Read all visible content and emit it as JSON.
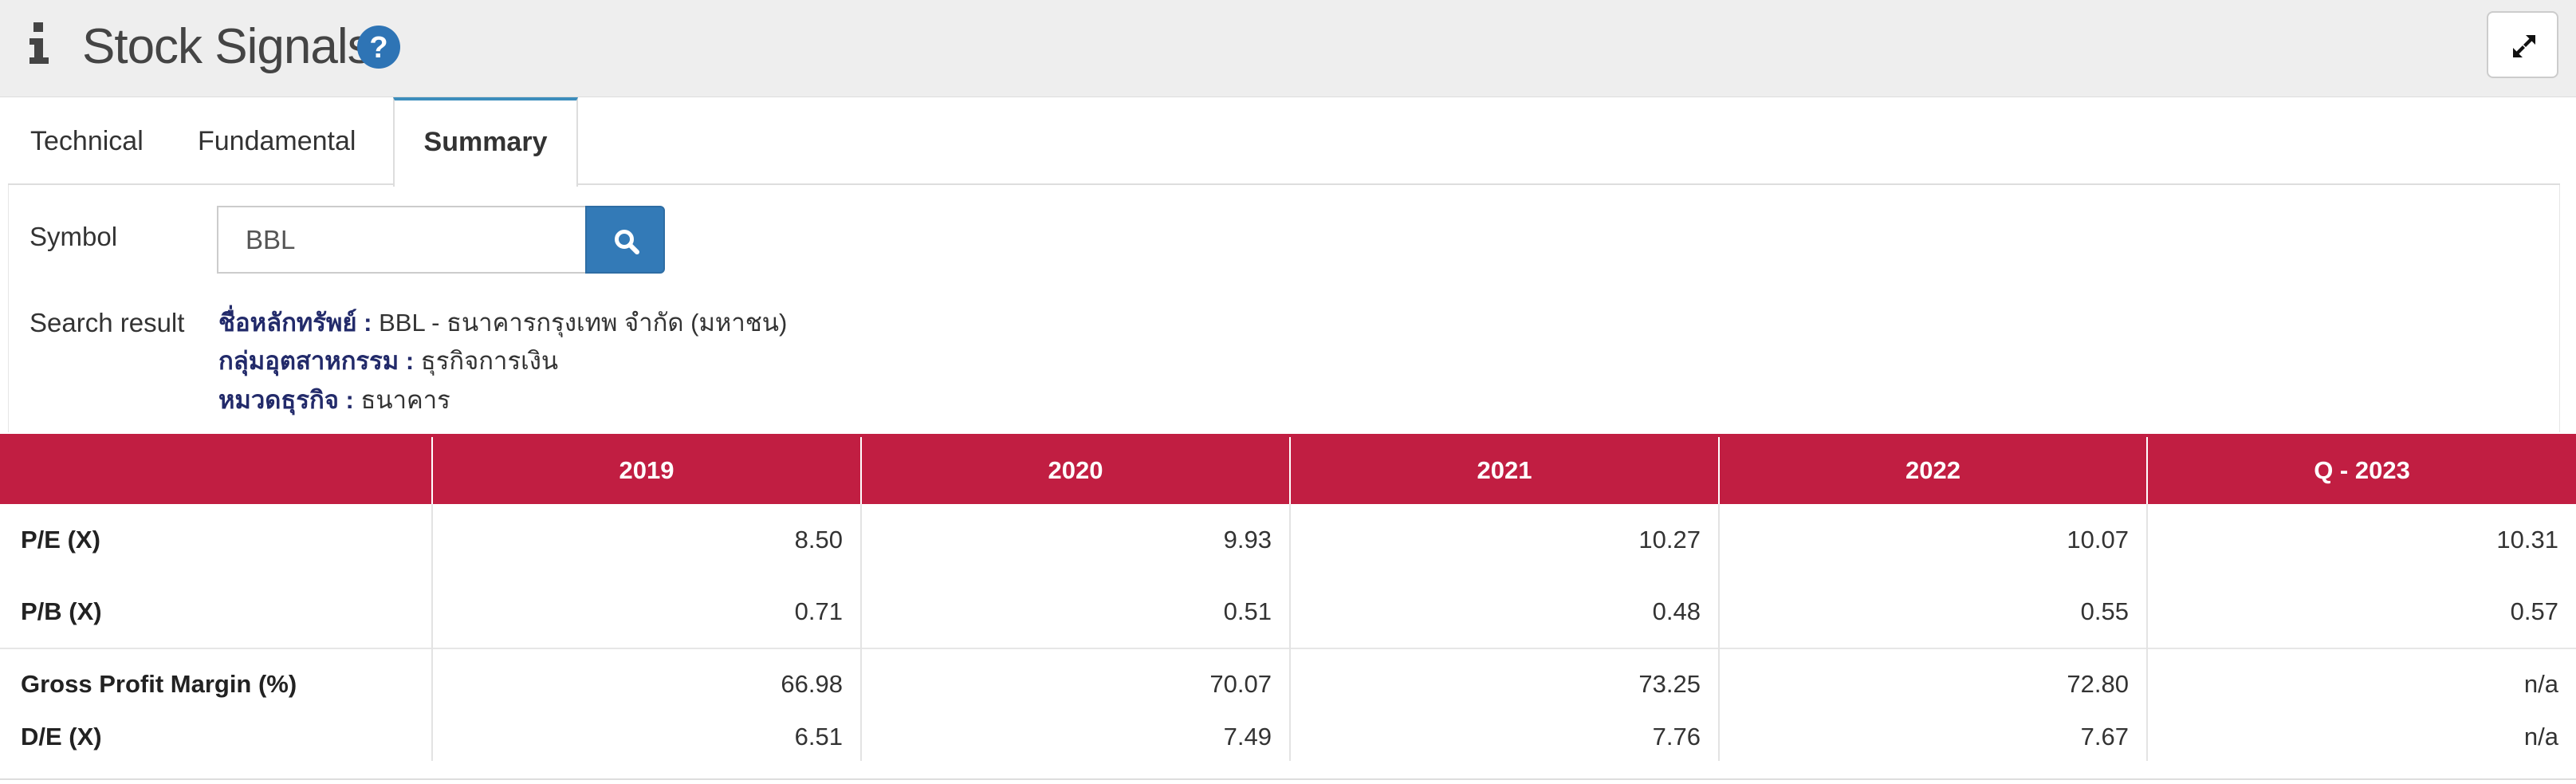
{
  "header": {
    "title": "Stock Signals"
  },
  "tabs": [
    {
      "label": "Technical"
    },
    {
      "label": "Fundamental"
    },
    {
      "label": "Summary"
    }
  ],
  "form": {
    "symbol_label": "Symbol",
    "symbol_value": "BBL",
    "result_label": "Search result",
    "results": [
      {
        "key": "ชื่อหลักทรัพย์ :",
        "value": "BBL - ธนาคารกรุงเทพ จำกัด (มหาชน)"
      },
      {
        "key": "กลุ่มอุตสาหกรรม :",
        "value": "ธุรกิจการเงิน"
      },
      {
        "key": "หมวดธุรกิจ :",
        "value": "ธนาคาร"
      }
    ]
  },
  "table": {
    "columns": [
      "",
      "2019",
      "2020",
      "2021",
      "2022",
      "Q - 2023"
    ],
    "rows": [
      {
        "label": "P/E (X)",
        "values": [
          "8.50",
          "9.93",
          "10.27",
          "10.07",
          "10.31"
        ]
      },
      {
        "label": "P/B (X)",
        "values": [
          "0.71",
          "0.51",
          "0.48",
          "0.55",
          "0.57"
        ]
      },
      {
        "label": "Gross Profit Margin (%)",
        "values": [
          "66.98",
          "70.07",
          "73.25",
          "72.80",
          "n/a"
        ]
      },
      {
        "label": "D/E (X)",
        "values": [
          "6.51",
          "7.49",
          "7.76",
          "7.67",
          "n/a"
        ]
      }
    ]
  },
  "colors": {
    "header_bg": "#eeeeee",
    "accent_blue": "#337ab7",
    "table_header": "#c11e42",
    "result_key": "#222a6a"
  },
  "icons": [
    "info-icon",
    "help-icon",
    "expand-icon",
    "search-icon"
  ]
}
